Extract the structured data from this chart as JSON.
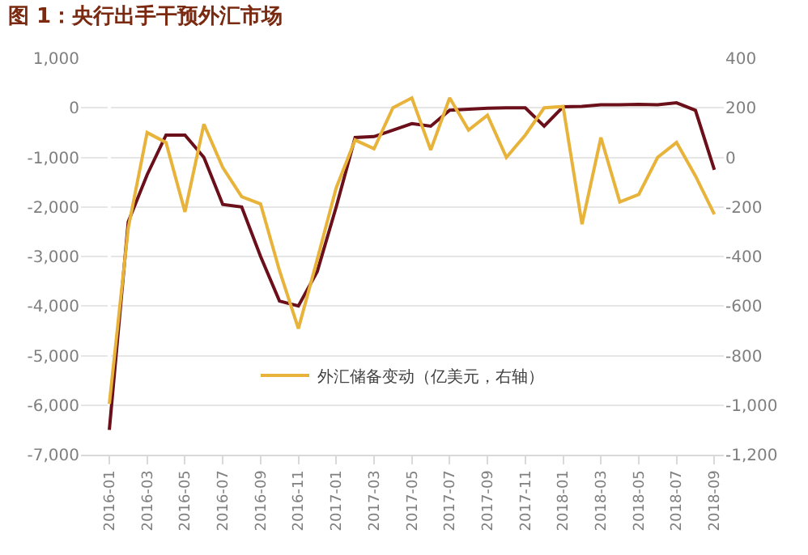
{
  "chart_data": {
    "type": "line",
    "title": "图 1：央行出手干预外汇市场",
    "categories": [
      "2016-01",
      null,
      "2016-03",
      null,
      "2016-05",
      null,
      "2016-07",
      null,
      "2016-09",
      null,
      "2016-11",
      null,
      "2017-01",
      null,
      "2017-03",
      null,
      "2017-05",
      null,
      "2017-07",
      null,
      "2017-09",
      null,
      "2017-11",
      null,
      "2018-01",
      null,
      "2018-03",
      null,
      "2018-05",
      null,
      "2018-07",
      null,
      "2018-09"
    ],
    "series": [
      {
        "color": "#6b0f1a",
        "values": [
          -6500,
          -2300,
          -1350,
          -550,
          -550,
          -1000,
          -1950,
          -2000,
          -3000,
          -3900,
          -4000,
          -3300,
          -2000,
          -600,
          -580,
          -450,
          -320,
          -370,
          -50,
          -30,
          -10,
          0,
          0,
          -370,
          20,
          30,
          60,
          60,
          70,
          60,
          100,
          -50,
          -1250
        ]
      },
      {
        "name": "外汇储备变动（亿美元，右轴）",
        "color": "#e8b33a",
        "axis": "y2",
        "values": [
          -995,
          -286,
          100,
          60,
          -220,
          134,
          -41,
          -159,
          -188,
          -457,
          -691,
          -411,
          -123,
          70,
          35,
          200,
          240,
          30,
          240,
          110,
          170,
          0,
          90,
          200,
          205,
          -270,
          80,
          -180,
          -150,
          0,
          60,
          -75,
          -230
        ]
      }
    ],
    "ylim": [
      -7000,
      1000
    ],
    "yticks": [
      {
        "value": -7000,
        "label": "-7,000"
      },
      {
        "value": -6000,
        "label": "-6,000"
      },
      {
        "value": -5000,
        "label": "-5,000"
      },
      {
        "value": -4000,
        "label": "-4,000"
      },
      {
        "value": -3000,
        "label": "-3,000"
      },
      {
        "value": -2000,
        "label": "-2,000"
      },
      {
        "value": -1000,
        "label": "-1,000"
      },
      0,
      {
        "value": 1000,
        "label": "1,000"
      }
    ],
    "y2lim": [
      -1200,
      400
    ],
    "y2ticks": [
      {
        "value": -1200,
        "label": "-1,200"
      },
      {
        "value": -1000,
        "label": "-1,000"
      },
      -800,
      -600,
      -400,
      -200,
      0,
      200,
      400
    ],
    "grid": "y",
    "legend": "bottom",
    "line_style": "solid",
    "marker": "none"
  }
}
